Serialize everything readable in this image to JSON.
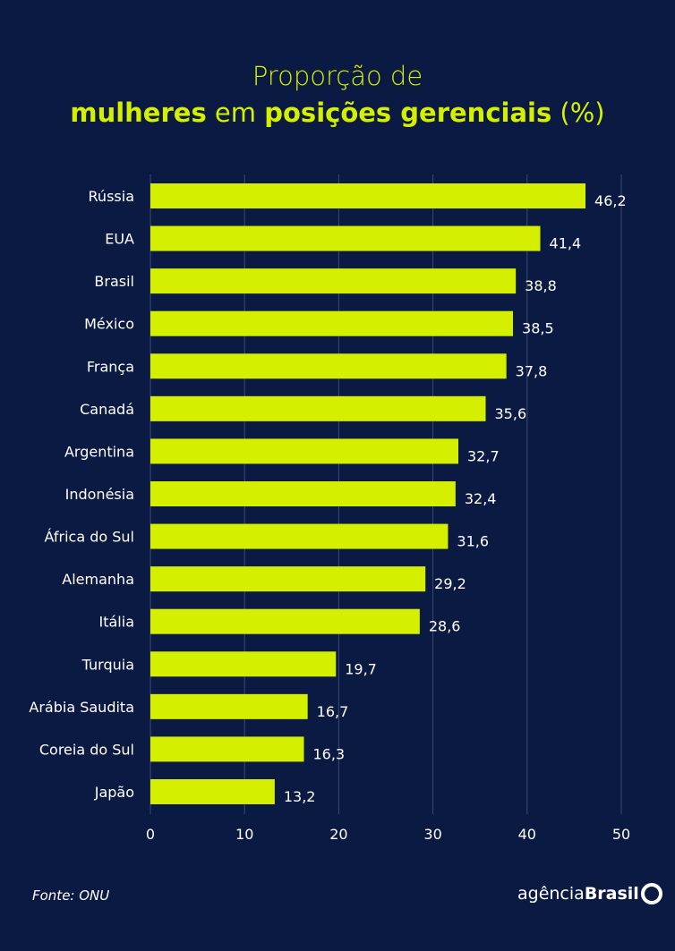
{
  "title": {
    "line1": "Proporção de",
    "line2_parts": [
      {
        "text": "mulheres",
        "bold": true
      },
      {
        "text": " em ",
        "bold": false
      },
      {
        "text": "posições gerenciais",
        "bold": true
      },
      {
        "text": " (%)",
        "bold": false
      }
    ]
  },
  "chart_data": {
    "type": "bar",
    "orientation": "horizontal",
    "title": "Proporção de mulheres em posições gerenciais (%)",
    "categories": [
      "Rússia",
      "EUA",
      "Brasil",
      "México",
      "França",
      "Canadá",
      "Argentina",
      "Indonésia",
      "África do Sul",
      "Alemanha",
      "Itália",
      "Turquia",
      "Arábia Saudita",
      "Coreia do Sul",
      "Japão"
    ],
    "values": [
      46.2,
      41.4,
      38.8,
      38.5,
      37.8,
      35.6,
      32.7,
      32.4,
      31.6,
      29.2,
      28.6,
      19.7,
      16.7,
      16.3,
      13.2
    ],
    "value_labels": [
      "46,2",
      "41,4",
      "38,8",
      "38,5",
      "37,8",
      "35,6",
      "32,7",
      "32,4",
      "31,6",
      "29,2",
      "28,6",
      "19,7",
      "16,7",
      "16,3",
      "13,2"
    ],
    "xlim": [
      0,
      50
    ],
    "xticks": [
      "0",
      "10",
      "20",
      "30",
      "40",
      "50"
    ],
    "grid": true,
    "colors": {
      "bar": "#d4f000",
      "background": "#0b1a42",
      "grid": "#3a4a75"
    }
  },
  "footer": {
    "source": "Fonte: ONU",
    "logo_light": "agência",
    "logo_bold": "Brasil"
  }
}
